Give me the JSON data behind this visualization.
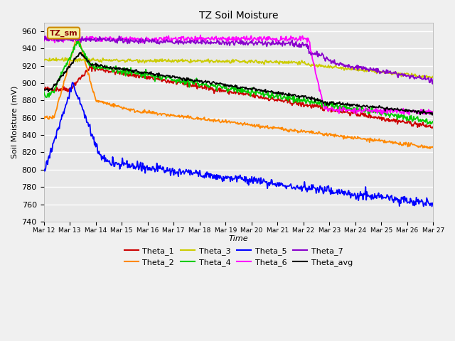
{
  "title": "TZ Soil Moisture",
  "xlabel": "Time",
  "ylabel": "Soil Moisture (mV)",
  "ylim": [
    740,
    970
  ],
  "xlim": [
    0,
    15
  ],
  "yticks": [
    740,
    760,
    780,
    800,
    820,
    840,
    860,
    880,
    900,
    920,
    940,
    960
  ],
  "xtick_labels": [
    "Mar 12",
    "Mar 13",
    "Mar 14",
    "Mar 15",
    "Mar 16",
    "Mar 17",
    "Mar 18",
    "Mar 19",
    "Mar 20",
    "Mar 21",
    "Mar 22",
    "Mar 23",
    "Mar 24",
    "Mar 25",
    "Mar 26",
    "Mar 27"
  ],
  "legend_entries": [
    "Theta_1",
    "Theta_2",
    "Theta_3",
    "Theta_4",
    "Theta_5",
    "Theta_6",
    "Theta_7",
    "Theta_avg"
  ],
  "legend_colors": [
    "#cc0000",
    "#ff8800",
    "#cccc00",
    "#00cc00",
    "#0000ff",
    "#ff00ff",
    "#8800cc",
    "#000000"
  ],
  "annotation_text": "TZ_sm",
  "background_color": "#e8e8e8",
  "fig_background": "#f0f0f0"
}
